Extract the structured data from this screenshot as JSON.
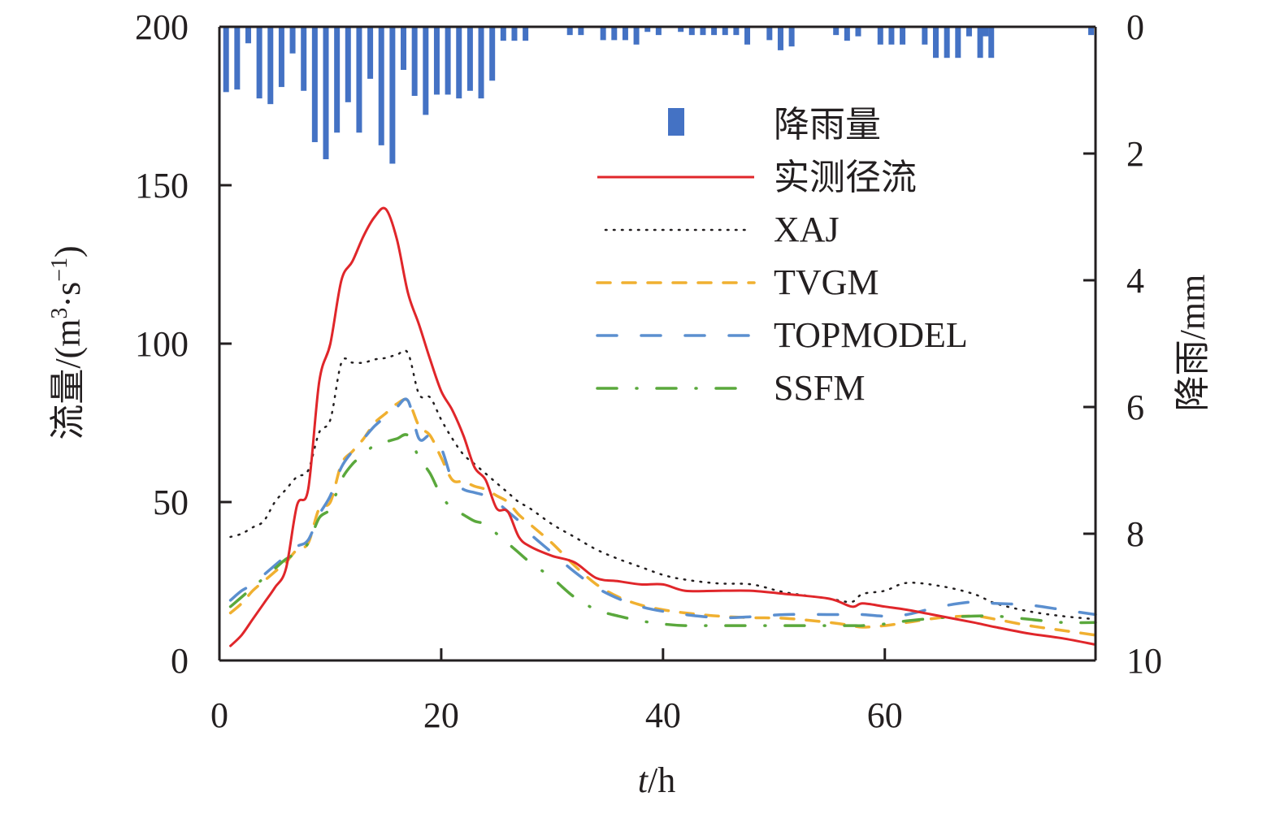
{
  "chart_data": {
    "type": "line",
    "title": "",
    "xlabel_italic": "t",
    "xlabel_rest": "/h",
    "ylabel_left": "流量/(m³·s⁻¹)",
    "ylabel_left_parts": {
      "pre": "流量/(m",
      "sup1": "3",
      "mid": "·s",
      "sup2": "−1",
      "post": ")"
    },
    "ylabel_right": "降雨/mm",
    "xlim": [
      0,
      79
    ],
    "ylim_left": [
      0,
      200
    ],
    "ylim_right": [
      0,
      10
    ],
    "right_axis_inverted": true,
    "x_ticks": [
      0,
      20,
      40,
      60
    ],
    "y_left_ticks": [
      0,
      50,
      100,
      150,
      200
    ],
    "y_right_ticks": [
      0,
      2,
      4,
      6,
      8,
      10
    ],
    "grid": false,
    "legend_position": "top-right",
    "legend": [
      {
        "label": "降雨量",
        "type": "bar",
        "color": "#4472c4"
      },
      {
        "label": "实测径流",
        "type": "solid",
        "color": "#e0262a"
      },
      {
        "label": "XAJ",
        "type": "dotted",
        "color": "#231f20"
      },
      {
        "label": "TVGM",
        "type": "dashed",
        "color": "#f0b030"
      },
      {
        "label": "TOPMODEL",
        "type": "longdash",
        "color": "#5b8fcf"
      },
      {
        "label": "SSFM",
        "type": "dashdot",
        "color": "#5aa83c"
      }
    ],
    "rainfall": {
      "name": "降雨量",
      "color": "#4472c4",
      "t": [
        1,
        2,
        3,
        4,
        5,
        6,
        7,
        8,
        9,
        10,
        11,
        12,
        13,
        14,
        15,
        16,
        17,
        18,
        19,
        20,
        21,
        22,
        23,
        24,
        25,
        26,
        27,
        28,
        32,
        33,
        35,
        36,
        37,
        38,
        39,
        40,
        42,
        43,
        44,
        45,
        46,
        47,
        48,
        50,
        51,
        52,
        56,
        57,
        58,
        60,
        61,
        62,
        64,
        65,
        66,
        67,
        68,
        69,
        70,
        69.5,
        79
      ],
      "values": [
        1.03,
        0.99,
        0.26,
        1.13,
        1.22,
        0.95,
        0.42,
        1.01,
        1.82,
        2.09,
        1.67,
        1.19,
        1.67,
        0.82,
        1.87,
        2.16,
        0.68,
        1.09,
        1.39,
        1.07,
        1.07,
        1.13,
        1.01,
        1.13,
        0.85,
        0.22,
        0.22,
        0.22,
        0.13,
        0.13,
        0.21,
        0.21,
        0.21,
        0.28,
        0.08,
        0.13,
        0.08,
        0.13,
        0.13,
        0.13,
        0.13,
        0.13,
        0.28,
        0.21,
        0.37,
        0.31,
        0.13,
        0.22,
        0.15,
        0.28,
        0.28,
        0.28,
        0.28,
        0.49,
        0.49,
        0.49,
        0.15,
        0.49,
        0.49,
        0.15,
        0.13
      ]
    },
    "x": [
      1,
      2,
      3,
      4,
      5,
      6,
      7,
      8,
      9,
      10,
      11,
      12,
      13,
      14,
      15,
      16,
      17,
      18,
      19,
      20,
      21,
      22,
      23,
      24,
      25,
      26,
      27,
      28,
      30,
      32,
      34,
      36,
      38,
      40,
      42,
      45,
      48,
      51,
      55,
      57,
      58,
      60,
      62,
      65,
      68,
      70,
      73,
      76,
      79
    ],
    "series": [
      {
        "name": "实测径流",
        "color": "#e0262a",
        "values": [
          4.6,
          8,
          13,
          18,
          23,
          29,
          49,
          54,
          88,
          100,
          120,
          126,
          134,
          140,
          142.5,
          133,
          116,
          106,
          95,
          85,
          79,
          71,
          61,
          57,
          48,
          47,
          39,
          36,
          33,
          31,
          26,
          25,
          24,
          24,
          22,
          22,
          22,
          21,
          19.5,
          17,
          18,
          17,
          16,
          14,
          12,
          10.5,
          8.5,
          7,
          5
        ]
      },
      {
        "name": "XAJ",
        "color": "#231f20",
        "values": [
          39,
          40,
          42,
          44,
          50,
          54,
          58,
          60,
          72,
          76,
          94,
          94,
          94,
          95,
          95.5,
          96.5,
          97,
          84,
          83,
          76,
          70,
          65,
          62,
          59,
          56,
          53,
          50,
          48,
          43,
          39,
          35,
          32,
          29.5,
          27,
          25.5,
          24.3,
          24,
          21.5,
          19.5,
          18.5,
          21,
          22,
          24.5,
          23.5,
          21,
          18,
          15.5,
          14,
          13
        ]
      },
      {
        "name": "TVGM",
        "color": "#f0b030",
        "values": [
          15,
          18,
          22,
          25,
          28,
          31,
          35,
          37,
          48,
          50,
          62,
          66,
          70,
          75,
          78,
          81,
          82,
          74,
          71,
          64,
          57,
          56.5,
          55,
          54,
          52,
          50,
          46,
          43,
          37,
          30,
          24,
          20,
          17.5,
          16,
          15,
          14,
          13.5,
          13.3,
          12,
          11,
          10.5,
          11,
          12,
          13.5,
          14,
          13,
          11,
          9.5,
          8
        ]
      },
      {
        "name": "TOPMODEL",
        "color": "#5b8fcf",
        "values": [
          19,
          22,
          24,
          27,
          30,
          33,
          36,
          38,
          46,
          52,
          61,
          66,
          70,
          74,
          77,
          80,
          82,
          70,
          71,
          67,
          57,
          54,
          53,
          52,
          50,
          47,
          44,
          40,
          34,
          28,
          23,
          19.5,
          17,
          15.5,
          14.5,
          13.5,
          13.8,
          14.5,
          14.5,
          14.5,
          14.5,
          14,
          14.5,
          17,
          18.5,
          18,
          17.5,
          16,
          14.5
        ]
      },
      {
        "name": "SSFM",
        "color": "#5aa83c",
        "values": [
          17,
          20,
          23,
          26,
          29,
          32,
          34,
          37,
          45,
          48,
          57,
          62,
          65,
          68,
          69,
          70,
          71,
          64,
          59,
          52,
          48,
          46,
          44,
          43,
          40,
          37,
          34,
          31,
          26,
          20,
          16,
          14,
          12.5,
          11.5,
          11,
          11,
          11,
          11,
          11,
          11,
          11,
          11.5,
          12.5,
          13.5,
          14,
          14,
          13,
          12,
          12
        ]
      }
    ]
  }
}
